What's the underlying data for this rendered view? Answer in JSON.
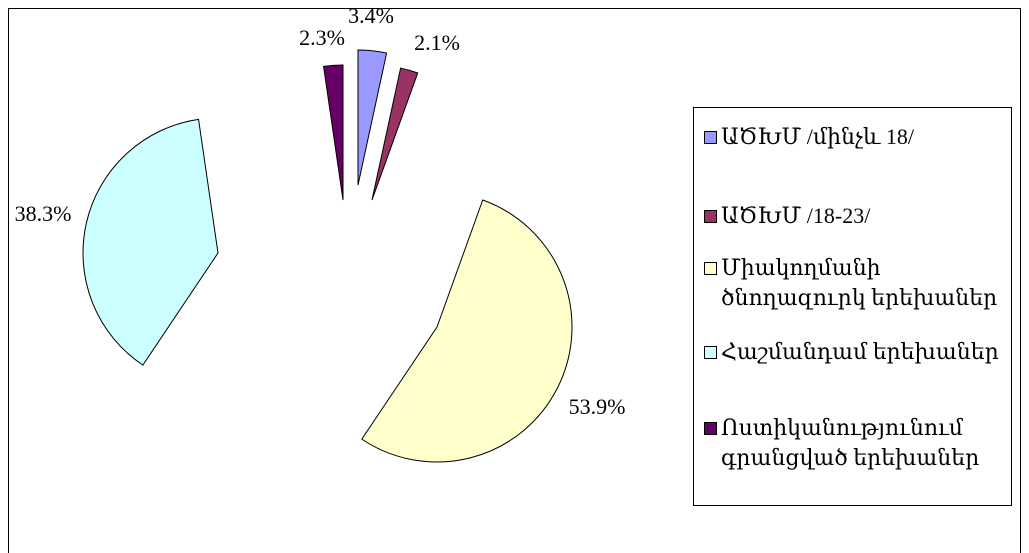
{
  "chart_data": {
    "type": "pie",
    "categories": [
      "ԱԾԽՄ /մինչև 18/",
      "ԱԾԽՄ /18-23/",
      "Միակողմանի ծնողազուրկ երեխաներ",
      "Հաշմանդամ երեխաներ",
      "Ոստիկանությունում գրանցված երեխաներ"
    ],
    "values": [
      3.4,
      2.1,
      53.9,
      38.3,
      2.3
    ],
    "value_labels": [
      "3.4%",
      "2.1%",
      "53.9%",
      "38.3%",
      "2.3%"
    ],
    "colors": [
      "#9999ff",
      "#993366",
      "#ffffcc",
      "#ccffff",
      "#660066"
    ],
    "legend": "right"
  }
}
